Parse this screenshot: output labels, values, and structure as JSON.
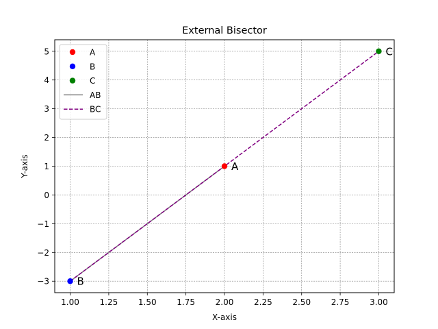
{
  "chart_data": {
    "type": "line",
    "title": "External Bisector",
    "xlabel": "X-axis",
    "ylabel": "Y-axis",
    "xlim": [
      0.9,
      3.1
    ],
    "ylim": [
      -3.4,
      5.4
    ],
    "grid": true,
    "legend_position": "top-left",
    "x_ticks": [
      1.0,
      1.25,
      1.5,
      1.75,
      2.0,
      2.25,
      2.5,
      2.75,
      3.0
    ],
    "x_tick_labels": [
      "1.00",
      "1.25",
      "1.50",
      "1.75",
      "2.00",
      "2.25",
      "2.50",
      "2.75",
      "3.00"
    ],
    "y_ticks": [
      -3,
      -2,
      -1,
      0,
      1,
      2,
      3,
      4,
      5
    ],
    "y_tick_labels": [
      "−3",
      "−2",
      "−1",
      "0",
      "1",
      "2",
      "3",
      "4",
      "5"
    ],
    "points": [
      {
        "name": "A",
        "label": "A",
        "x": 2,
        "y": 1,
        "color": "#ff0000"
      },
      {
        "name": "B",
        "label": "B",
        "x": 1,
        "y": -3,
        "color": "#0000ff"
      },
      {
        "name": "C",
        "label": "C",
        "x": 3,
        "y": 5,
        "color": "#008000"
      }
    ],
    "series": [
      {
        "name": "AB",
        "x": [
          2,
          1
        ],
        "y": [
          1,
          -3
        ],
        "color": "#808080",
        "style": "solid"
      },
      {
        "name": "BC",
        "x": [
          1,
          3
        ],
        "y": [
          -3,
          5
        ],
        "color": "#800080",
        "style": "dashed"
      }
    ],
    "legend": [
      {
        "label": "A",
        "kind": "marker",
        "color": "#ff0000"
      },
      {
        "label": "B",
        "kind": "marker",
        "color": "#0000ff"
      },
      {
        "label": "C",
        "kind": "marker",
        "color": "#008000"
      },
      {
        "label": "AB",
        "kind": "line",
        "color": "#808080",
        "style": "solid"
      },
      {
        "label": "BC",
        "kind": "line",
        "color": "#800080",
        "style": "dashed"
      }
    ]
  }
}
